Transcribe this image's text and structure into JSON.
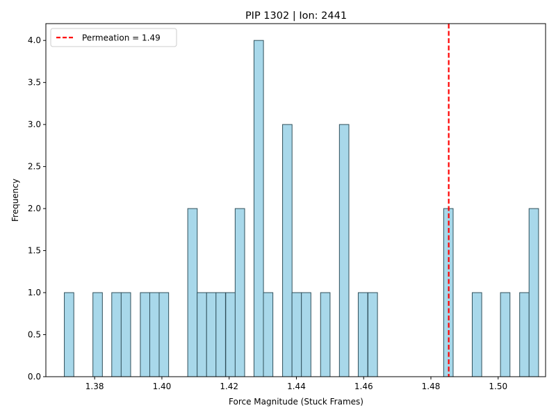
{
  "chart_data": {
    "type": "bar",
    "title": "PIP 1302 | Ion: 2441",
    "xlabel": "Force Magnitude (Stuck Frames)",
    "ylabel": "Frequency",
    "xlim": [
      1.3655,
      1.5141
    ],
    "ylim": [
      0,
      4.2
    ],
    "xticks": [
      "1.38",
      "1.40",
      "1.42",
      "1.44",
      "1.46",
      "1.48",
      "1.50"
    ],
    "xtick_values": [
      1.38,
      1.4,
      1.42,
      1.44,
      1.46,
      1.48,
      1.5
    ],
    "yticks": [
      "0.0",
      "0.5",
      "1.0",
      "1.5",
      "2.0",
      "2.5",
      "3.0",
      "3.5",
      "4.0"
    ],
    "ytick_values": [
      0,
      0.5,
      1.0,
      1.5,
      2.0,
      2.5,
      3.0,
      3.5,
      4.0
    ],
    "bin_width": 0.00282,
    "bins": [
      {
        "x": 1.3724,
        "count": 1
      },
      {
        "x": 1.3809,
        "count": 1
      },
      {
        "x": 1.3865,
        "count": 1
      },
      {
        "x": 1.3893,
        "count": 1
      },
      {
        "x": 1.395,
        "count": 1
      },
      {
        "x": 1.3978,
        "count": 1
      },
      {
        "x": 1.4006,
        "count": 1
      },
      {
        "x": 1.4091,
        "count": 2
      },
      {
        "x": 1.4119,
        "count": 1
      },
      {
        "x": 1.4147,
        "count": 1
      },
      {
        "x": 1.4175,
        "count": 1
      },
      {
        "x": 1.4204,
        "count": 1
      },
      {
        "x": 1.4232,
        "count": 2
      },
      {
        "x": 1.4288,
        "count": 4
      },
      {
        "x": 1.4316,
        "count": 1
      },
      {
        "x": 1.4373,
        "count": 3
      },
      {
        "x": 1.4401,
        "count": 1
      },
      {
        "x": 1.4429,
        "count": 1
      },
      {
        "x": 1.4486,
        "count": 1
      },
      {
        "x": 1.4542,
        "count": 3
      },
      {
        "x": 1.4598,
        "count": 1
      },
      {
        "x": 1.4627,
        "count": 1
      },
      {
        "x": 1.4852,
        "count": 2
      },
      {
        "x": 1.4937,
        "count": 1
      },
      {
        "x": 1.5021,
        "count": 1
      },
      {
        "x": 1.5078,
        "count": 1
      },
      {
        "x": 1.5106,
        "count": 2
      }
    ],
    "reference_line": {
      "x": 1.4853,
      "label": "Permeation = 1.49",
      "color": "#ff0000"
    },
    "bar_color": "#a8d8ea",
    "bar_edge_color": "#2f4f5a",
    "legend": {
      "placement": "top-left",
      "entries": [
        "Permeation = 1.49"
      ]
    },
    "grid": false
  }
}
